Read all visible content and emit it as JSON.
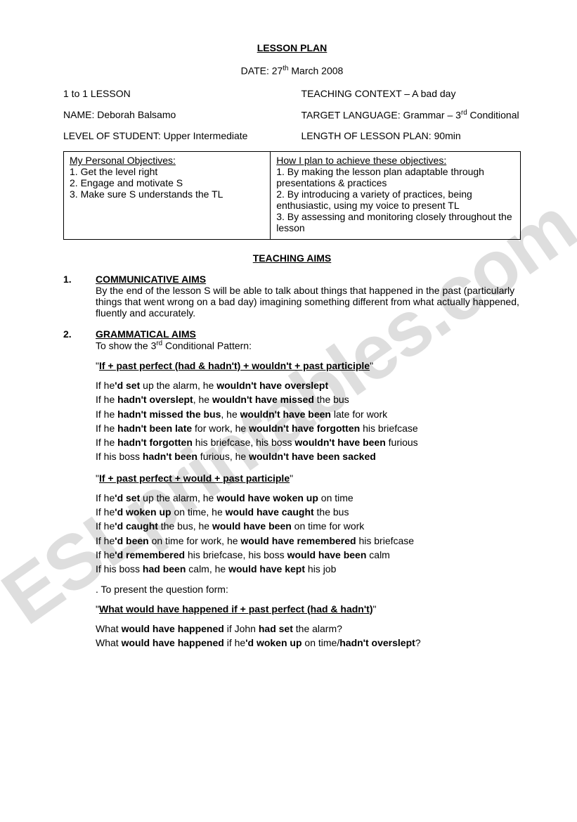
{
  "title": "LESSON PLAN",
  "date_prefix": "DATE: 27",
  "date_sup": "th",
  "date_rest": " March 2008",
  "meta": {
    "lesson_type": "1 to 1 LESSON",
    "context": "TEACHING CONTEXT – A bad day",
    "name_label": "NAME: Deborah Balsamo",
    "target_pre": "TARGET LANGUAGE: Grammar – 3",
    "target_sup": "rd",
    "target_post": " Conditional",
    "level": "LEVEL OF STUDENT: Upper Intermediate",
    "length": "LENGTH OF LESSON PLAN:  90min"
  },
  "objectives": {
    "left_head": "My Personal Objectives:",
    "left_1": "1. Get the level right",
    "left_2": "2. Engage and motivate S",
    "left_3": "3. Make sure S understands the TL",
    "right_head": "How I plan to achieve these objectives:",
    "right_1": "1. By making the lesson plan adaptable through presentations & practices",
    "right_2": "2. By introducing a variety of practices, being enthusiastic, using my voice to present TL",
    "right_3": "3. By assessing and monitoring closely throughout the lesson"
  },
  "teaching_aims_title": "TEACHING AIMS",
  "aim1": {
    "num": "1.",
    "head": "COMMUNICATIVE AIMS",
    "body": "By the end of the lesson S will be able to talk about things that happened in the past (particularly things that went wrong on a bad day) imagining something different from what actually happened, fluently and accurately."
  },
  "aim2": {
    "num": "2.",
    "head": "GRAMMATICAL AIMS",
    "intro_pre": "To show the 3",
    "intro_sup": "rd",
    "intro_post": " Conditional Pattern:",
    "pattern1": "If + past perfect (had & hadn't) + wouldn't + past participle",
    "ex1": [
      {
        "p": [
          "If he",
          "'d set",
          " up the alarm, he ",
          "wouldn't have overslept",
          ""
        ]
      },
      {
        "p": [
          "If he ",
          "hadn't overslept",
          ", he ",
          "wouldn't have missed",
          " the bus"
        ]
      },
      {
        "p": [
          "If he ",
          "hadn't missed the bus",
          ", he ",
          "wouldn't have been",
          " late for work"
        ]
      },
      {
        "p": [
          "If he ",
          "hadn't been late",
          " for work, he ",
          "wouldn't have forgotten",
          " his briefcase"
        ]
      },
      {
        "p": [
          "If he ",
          "hadn't forgotten",
          " his briefcase, his boss ",
          "wouldn't have been",
          " furious"
        ]
      },
      {
        "p": [
          "If his boss ",
          "hadn't been",
          " furious, he ",
          "wouldn't have been sacked",
          ""
        ]
      }
    ],
    "pattern2": "If + past perfect + would + past participle",
    "ex2": [
      {
        "p": [
          "If he",
          "'d set",
          " up the alarm, he ",
          "would have woken up",
          " on time"
        ]
      },
      {
        "p": [
          "If he",
          "'d woken up",
          " on time, he ",
          "would have caught",
          " the bus"
        ]
      },
      {
        "p": [
          "If he",
          "'d caught",
          " the bus, he ",
          "would have been",
          " on time for work"
        ]
      },
      {
        "p": [
          "If he",
          "'d been",
          " on time for work, he ",
          "would have remembered",
          " his briefcase"
        ]
      },
      {
        "p": [
          "If he",
          "'d remembered",
          " his briefcase, his boss ",
          "would have been",
          " calm"
        ]
      },
      {
        "p": [
          "If his boss ",
          "had been",
          " calm, he ",
          "would have kept",
          " his job"
        ]
      }
    ],
    "question_intro": ". To present the question form:",
    "pattern3": "What would have happened if + past perfect (had & hadn't)",
    "q1": {
      "p": [
        "What ",
        "would have happened",
        " if John ",
        "had set",
        " the alarm?"
      ]
    },
    "q2": {
      "p": [
        "What ",
        "would have happened",
        " if he",
        "'d woken up",
        " on time/",
        "hadn't overslept",
        "?"
      ]
    }
  },
  "watermark": "ESLprintables.com"
}
